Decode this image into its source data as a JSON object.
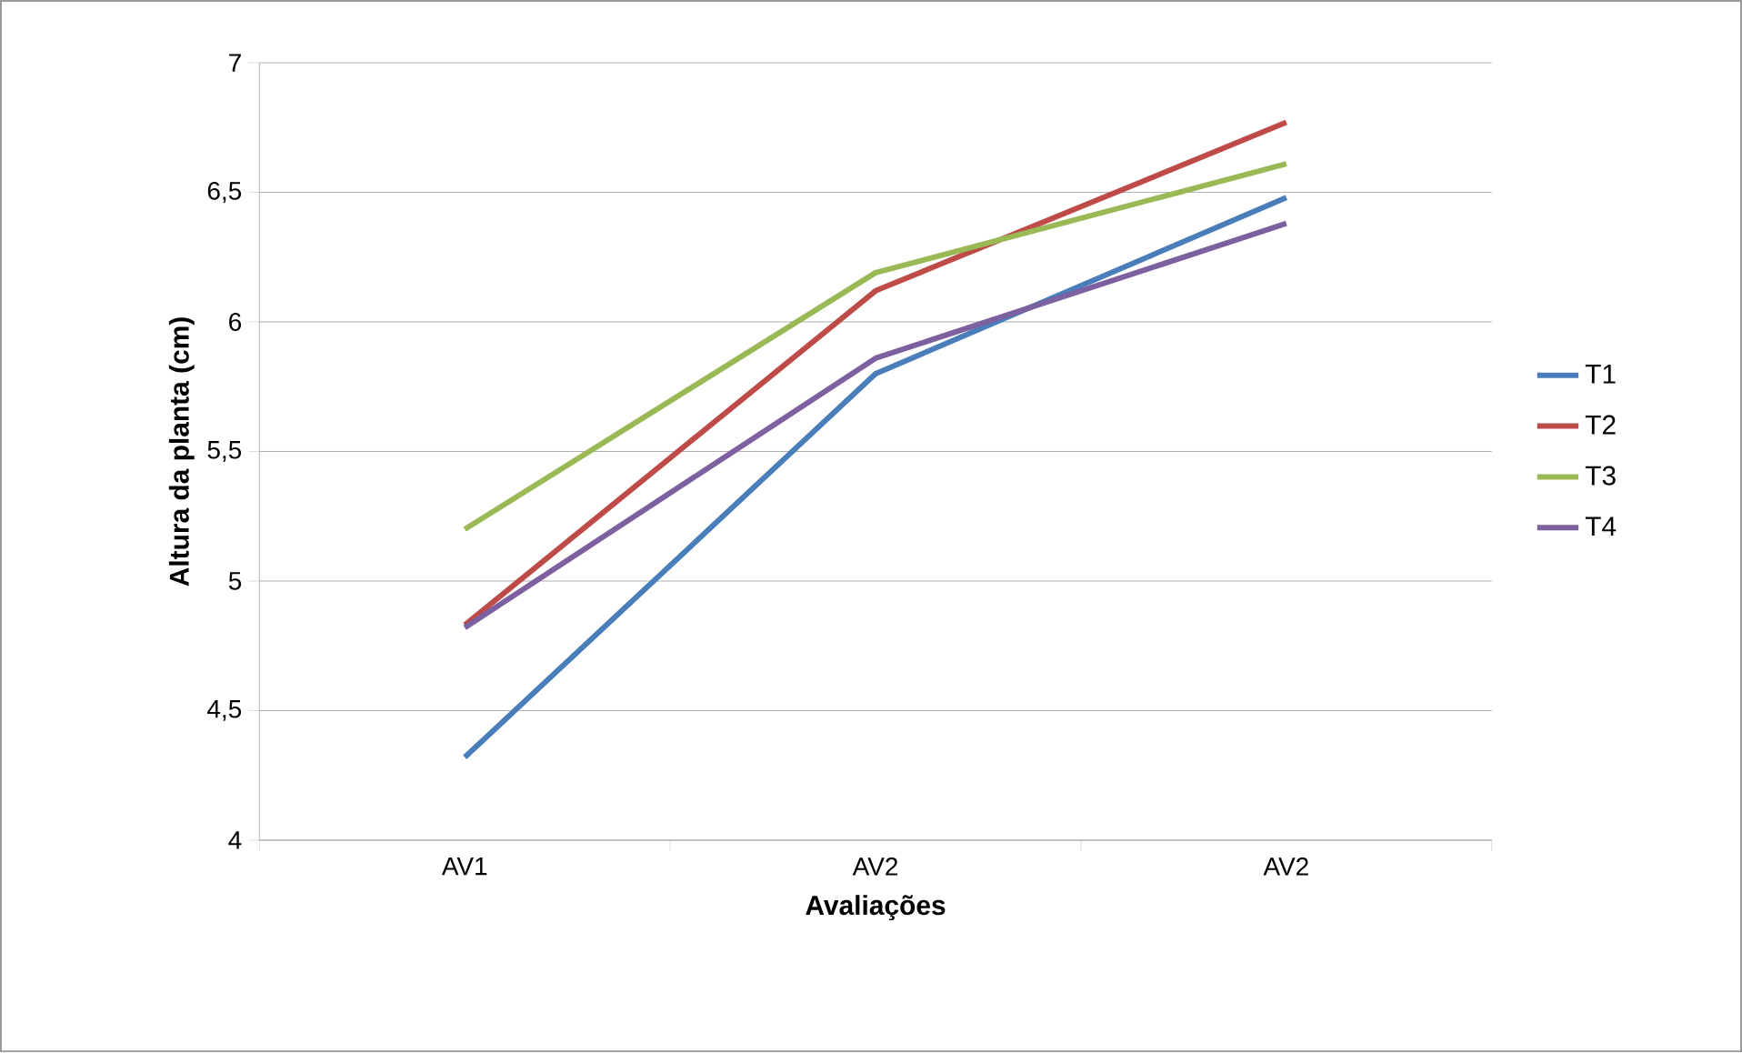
{
  "chart_data": {
    "type": "line",
    "xlabel": "Avaliações",
    "ylabel": "Altura da planta (cm)",
    "categories": [
      "AV1",
      "AV2",
      "AV2"
    ],
    "series": [
      {
        "name": "T1",
        "color": "#4a7ebb",
        "values": [
          4.32,
          5.8,
          6.48
        ]
      },
      {
        "name": "T2",
        "color": "#be4b48",
        "values": [
          4.83,
          6.12,
          6.77
        ]
      },
      {
        "name": "T3",
        "color": "#98b954",
        "values": [
          5.2,
          6.19,
          6.61
        ]
      },
      {
        "name": "T4",
        "color": "#7d60a0",
        "values": [
          4.82,
          5.86,
          6.38
        ]
      }
    ],
    "ylim": [
      4,
      7
    ],
    "yticks": [
      {
        "value": 4,
        "label": "4"
      },
      {
        "value": 4.5,
        "label": "4,5"
      },
      {
        "value": 5,
        "label": "5"
      },
      {
        "value": 5.5,
        "label": "5,5"
      },
      {
        "value": 6,
        "label": "6"
      },
      {
        "value": 6.5,
        "label": "6,5"
      },
      {
        "value": 7,
        "label": "7"
      }
    ],
    "grid": "y",
    "legend": "right",
    "marker": "none",
    "line_style": "solid"
  }
}
